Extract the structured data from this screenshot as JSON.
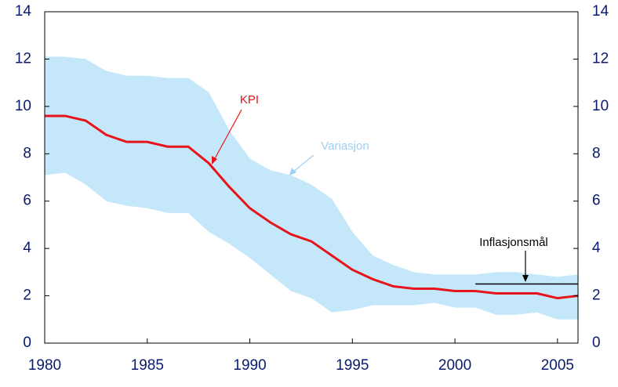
{
  "chart_data": {
    "type": "line",
    "x": [
      1980,
      1981,
      1982,
      1983,
      1984,
      1985,
      1986,
      1987,
      1988,
      1989,
      1990,
      1991,
      1992,
      1993,
      1994,
      1995,
      1996,
      1997,
      1998,
      1999,
      2000,
      2001,
      2002,
      2003,
      2004,
      2005,
      2006
    ],
    "series": [
      {
        "name": "Variasjon",
        "color": "#c4e8fa",
        "label_color": "#9fd0f0",
        "upper": [
          12.1,
          12.1,
          12.0,
          11.5,
          11.3,
          11.3,
          11.2,
          11.2,
          10.6,
          9.0,
          7.8,
          7.3,
          7.1,
          6.7,
          6.1,
          4.7,
          3.7,
          3.3,
          3.0,
          2.9,
          2.9,
          2.9,
          3.0,
          3.0,
          2.9,
          2.8,
          2.9
        ],
        "lower": [
          7.1,
          7.2,
          6.7,
          6.0,
          5.8,
          5.7,
          5.5,
          5.5,
          4.7,
          4.2,
          3.6,
          2.9,
          2.2,
          1.9,
          1.3,
          1.4,
          1.6,
          1.6,
          1.6,
          1.7,
          1.5,
          1.5,
          1.2,
          1.2,
          1.3,
          1.0,
          1.0
        ]
      },
      {
        "name": "KPI",
        "color": "#e8141c",
        "values": [
          9.6,
          9.6,
          9.4,
          8.8,
          8.5,
          8.5,
          8.3,
          8.3,
          7.6,
          6.6,
          5.7,
          5.1,
          4.6,
          4.3,
          3.7,
          3.1,
          2.7,
          2.4,
          2.3,
          2.3,
          2.2,
          2.2,
          2.1,
          2.1,
          2.1,
          1.9,
          2.0
        ]
      },
      {
        "name": "Inflasjonsmål",
        "color": "#000000",
        "x": [
          2001,
          2006
        ],
        "values": [
          2.5,
          2.5
        ]
      }
    ],
    "xlim": [
      1980,
      2006
    ],
    "xticks": [
      1980,
      1985,
      1990,
      1995,
      2000,
      2005
    ],
    "ylim": [
      0,
      14
    ],
    "yticks": [
      0,
      2,
      4,
      6,
      8,
      10,
      12,
      14
    ],
    "y2lim": [
      0,
      14
    ],
    "y2ticks": [
      0,
      2,
      4,
      6,
      8,
      10,
      12,
      14
    ]
  }
}
